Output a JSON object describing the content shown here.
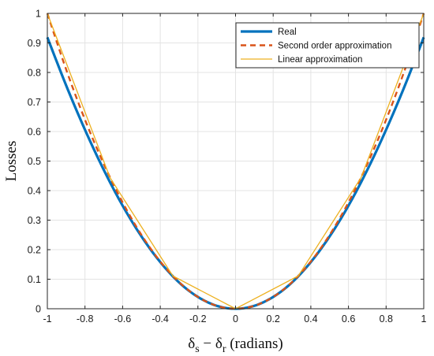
{
  "chart_data": {
    "type": "line",
    "title": "",
    "xlabel": "δs − δr (radians)",
    "ylabel": "Losses",
    "xlim": [
      -1,
      1
    ],
    "ylim": [
      0,
      1
    ],
    "xticks": [
      "-1",
      "-0.8",
      "-0.6",
      "-0.4",
      "-0.2",
      "0",
      "0.2",
      "0.4",
      "0.6",
      "0.8",
      "1"
    ],
    "yticks": [
      "0",
      "0.1",
      "0.2",
      "0.3",
      "0.4",
      "0.5",
      "0.6",
      "0.7",
      "0.8",
      "0.9",
      "1"
    ],
    "grid": true,
    "legend_position": "top-right",
    "series": [
      {
        "name": "Real",
        "style": "solid-thick",
        "color": "#0072BD",
        "x": [
          -1,
          -0.9,
          -0.8,
          -0.7,
          -0.6,
          -0.5,
          -0.4,
          -0.3,
          -0.2,
          -0.1,
          0,
          0.1,
          0.2,
          0.3,
          0.4,
          0.5,
          0.6,
          0.7,
          0.8,
          0.9,
          1
        ],
        "y": [
          0.919,
          0.756,
          0.606,
          0.47,
          0.349,
          0.245,
          0.158,
          0.089,
          0.04,
          0.01,
          0,
          0.01,
          0.04,
          0.089,
          0.158,
          0.245,
          0.349,
          0.47,
          0.606,
          0.756,
          0.919
        ]
      },
      {
        "name": "Second order approximation",
        "style": "dashed",
        "color": "#D95319",
        "x": [
          -1,
          -0.9,
          -0.8,
          -0.7,
          -0.6,
          -0.5,
          -0.4,
          -0.3,
          -0.2,
          -0.1,
          0,
          0.1,
          0.2,
          0.3,
          0.4,
          0.5,
          0.6,
          0.7,
          0.8,
          0.9,
          1
        ],
        "y": [
          1.0,
          0.81,
          0.64,
          0.49,
          0.36,
          0.25,
          0.16,
          0.09,
          0.04,
          0.01,
          0,
          0.01,
          0.04,
          0.09,
          0.16,
          0.25,
          0.36,
          0.49,
          0.64,
          0.81,
          1.0
        ]
      },
      {
        "name": "Linear approximation",
        "style": "solid-thin",
        "color": "#EDB120",
        "x": [
          -1,
          -0.667,
          -0.333,
          0,
          0.333,
          0.667,
          1
        ],
        "y": [
          1.0,
          0.444,
          0.111,
          0,
          0.111,
          0.444,
          1.0
        ]
      }
    ]
  }
}
